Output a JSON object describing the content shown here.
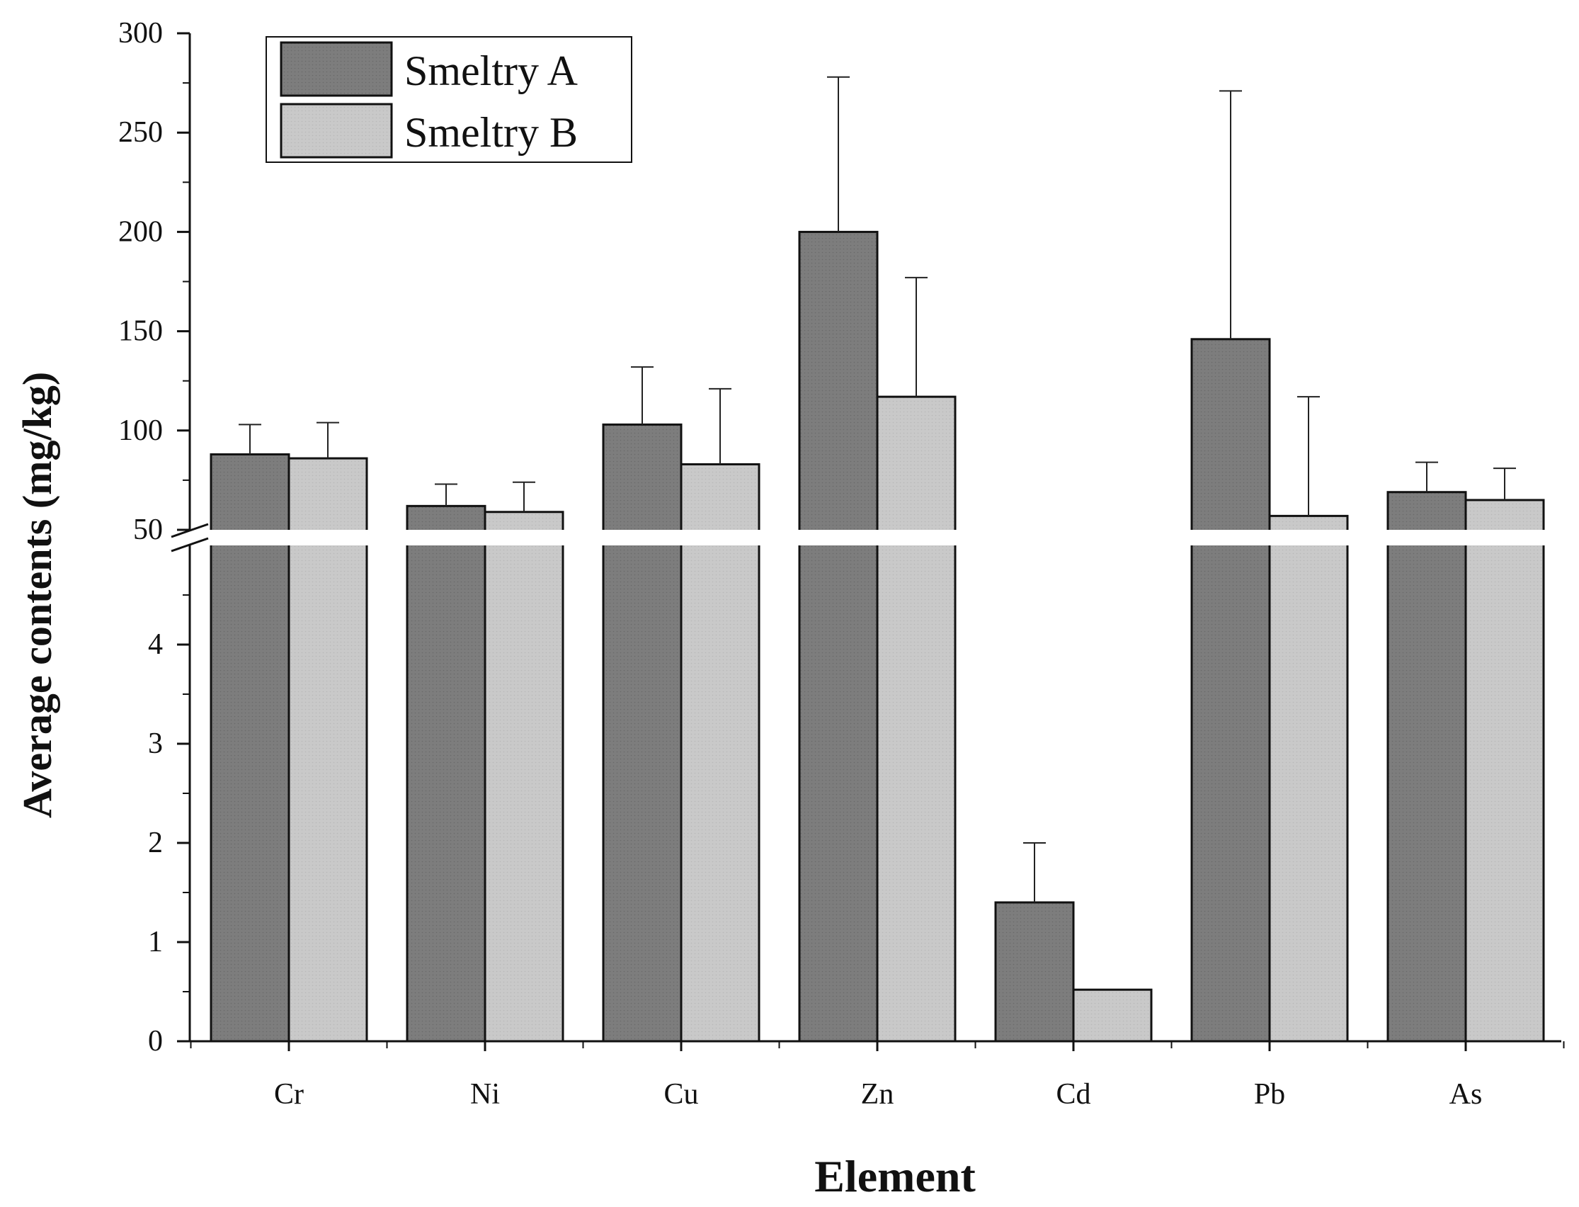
{
  "chart_data": {
    "type": "bar",
    "title": "",
    "xlabel": "Element",
    "ylabel": "Average contents (mg/kg)",
    "categories": [
      "Cr",
      "Ni",
      "Cu",
      "Zn",
      "Cd",
      "Pb",
      "As"
    ],
    "series": [
      {
        "name": "Smeltry A",
        "color": "#7d7d7d",
        "values": [
          88,
          62,
          103,
          200,
          1.4,
          146,
          69
        ],
        "errors": [
          15,
          11,
          29,
          78,
          0.6,
          125,
          15
        ]
      },
      {
        "name": "Smeltry B",
        "color": "#c9c9c9",
        "values": [
          86,
          59,
          83,
          117,
          0.52,
          57,
          65
        ],
        "errors": [
          18,
          15,
          38,
          60,
          0,
          60,
          16
        ]
      }
    ],
    "y_axis_break": {
      "lower_segment": {
        "range": [
          0,
          5
        ],
        "tick_labels": [
          "0",
          "1",
          "2",
          "3",
          "4"
        ]
      },
      "upper_segment": {
        "range": [
          50,
          300
        ],
        "tick_labels": [
          "50",
          "100",
          "150",
          "200",
          "250",
          "300"
        ]
      }
    },
    "legend": {
      "position": "top-left"
    },
    "grid": false
  }
}
